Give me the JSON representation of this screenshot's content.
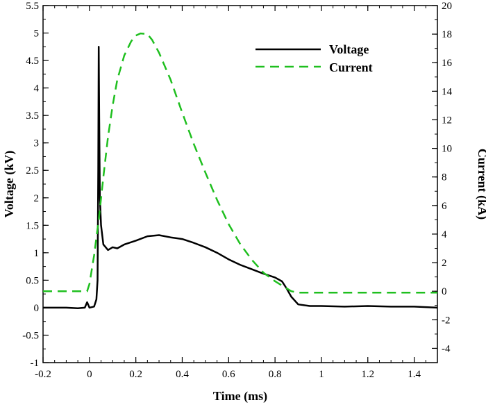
{
  "chart_data": {
    "type": "line",
    "xlabel": "Time (ms)",
    "ylabel": "Voltage (kV)",
    "y2label": "Current (kA)",
    "xlim": [
      -0.2,
      1.5
    ],
    "ylim": [
      -1,
      5.5
    ],
    "y2lim": [
      -5,
      20
    ],
    "x_ticks": [
      "-0.2",
      "0",
      "0.2",
      "0.4",
      "0.6",
      "0.8",
      "1",
      "1.2",
      "1.4"
    ],
    "y_ticks": [
      "-1",
      "-0.5",
      "0",
      "0.5",
      "1",
      "1.5",
      "2",
      "2.5",
      "3",
      "3.5",
      "4",
      "4.5",
      "5",
      "5.5"
    ],
    "y2_ticks": [
      "-4",
      "-2",
      "0",
      "2",
      "4",
      "6",
      "8",
      "10",
      "12",
      "14",
      "16",
      "18",
      "20"
    ],
    "legend_position": "top-right",
    "grid": false,
    "series": [
      {
        "name": "Voltage",
        "axis": "left",
        "color": "#000000",
        "dash": "solid",
        "x": [
          -0.2,
          -0.15,
          -0.1,
          -0.05,
          -0.02,
          -0.01,
          0.0,
          0.02,
          0.03,
          0.035,
          0.038,
          0.04,
          0.042,
          0.045,
          0.05,
          0.06,
          0.08,
          0.1,
          0.12,
          0.15,
          0.2,
          0.25,
          0.3,
          0.35,
          0.4,
          0.45,
          0.5,
          0.55,
          0.6,
          0.65,
          0.7,
          0.75,
          0.8,
          0.83,
          0.85,
          0.87,
          0.9,
          0.95,
          1.0,
          1.1,
          1.2,
          1.3,
          1.4,
          1.5
        ],
        "y": [
          0.0,
          0.0,
          0.0,
          -0.01,
          0.0,
          0.1,
          0.0,
          0.02,
          0.15,
          0.5,
          2.5,
          4.75,
          3.5,
          2.0,
          1.5,
          1.15,
          1.05,
          1.1,
          1.08,
          1.15,
          1.22,
          1.3,
          1.32,
          1.28,
          1.25,
          1.18,
          1.1,
          1.0,
          0.88,
          0.78,
          0.7,
          0.62,
          0.55,
          0.48,
          0.35,
          0.2,
          0.06,
          0.03,
          0.03,
          0.02,
          0.03,
          0.02,
          0.02,
          0.0
        ]
      },
      {
        "name": "Current",
        "axis": "right",
        "color": "#1fbf1f",
        "dash": "dashed",
        "x": [
          -0.2,
          -0.1,
          -0.01,
          0.0,
          0.02,
          0.04,
          0.06,
          0.08,
          0.1,
          0.12,
          0.15,
          0.18,
          0.2,
          0.22,
          0.25,
          0.27,
          0.3,
          0.35,
          0.4,
          0.45,
          0.5,
          0.55,
          0.6,
          0.65,
          0.7,
          0.75,
          0.8,
          0.84,
          0.87,
          0.9,
          1.0,
          1.2,
          1.4,
          1.5
        ],
        "y": [
          0.0,
          0.0,
          0.0,
          0.5,
          2.5,
          5.0,
          8.0,
          10.8,
          13.0,
          14.8,
          16.5,
          17.5,
          17.9,
          18.05,
          18.0,
          17.6,
          16.7,
          14.8,
          12.5,
          10.3,
          8.3,
          6.4,
          4.7,
          3.3,
          2.2,
          1.3,
          0.7,
          0.3,
          0.0,
          -0.1,
          -0.1,
          -0.1,
          -0.1,
          -0.1
        ]
      }
    ]
  }
}
